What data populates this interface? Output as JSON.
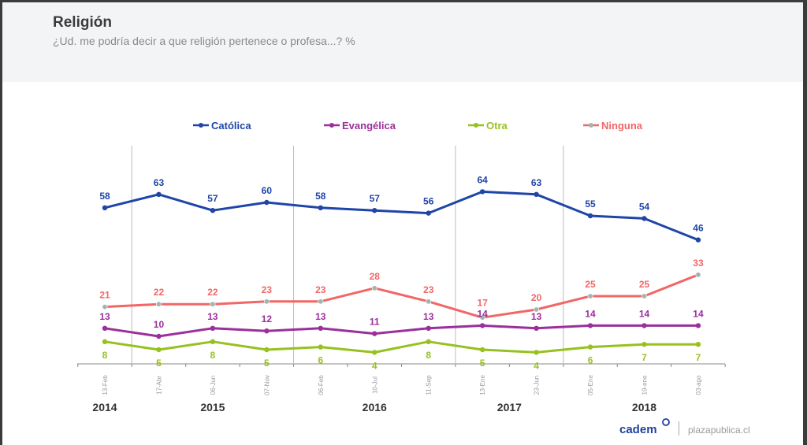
{
  "header": {
    "title": "Religión",
    "subtitle": "¿Ud. me podría decir a que religión pertenece o profesa...? %"
  },
  "footer": {
    "logo": "cadem",
    "site": "plazapublica.cl"
  },
  "chart_data": {
    "type": "line",
    "title": "Religión",
    "categories": [
      "13-Feb",
      "17-Abr",
      "06-Jun",
      "07-Nov",
      "06-Feb",
      "10-Jul",
      "11-Sep",
      "13-Ene",
      "23-Jun",
      "05-Ene",
      "19-ene",
      "03-ago"
    ],
    "years": [
      {
        "label": "2014",
        "center_index": 0
      },
      {
        "label": "2015",
        "center_index": 2
      },
      {
        "label": "2016",
        "center_index": 5
      },
      {
        "label": "2017",
        "center_index": 7.5
      },
      {
        "label": "2018",
        "center_index": 10
      }
    ],
    "year_separators_after_index": [
      0.5,
      3.5,
      6.5,
      8.5
    ],
    "ylim": [
      0,
      70
    ],
    "legend_position": "top",
    "series": [
      {
        "name": "Católica",
        "color": "#1f45a8",
        "marker": "#1f45a8",
        "label_pos": "above",
        "values": [
          58,
          63,
          57,
          60,
          58,
          57,
          56,
          64,
          63,
          55,
          54,
          46
        ]
      },
      {
        "name": "Evangélica",
        "color": "#9b2f9b",
        "marker": "#9b2f9b",
        "label_pos": "above",
        "values": [
          13,
          10,
          13,
          12,
          13,
          11,
          13,
          14,
          13,
          14,
          14,
          14
        ]
      },
      {
        "name": "Otra",
        "color": "#97c11f",
        "marker": "#97c11f",
        "label_pos": "below",
        "values": [
          8,
          5,
          8,
          5,
          6,
          4,
          8,
          5,
          4,
          6,
          7,
          7
        ]
      },
      {
        "name": "Ninguna",
        "color": "#f26666",
        "marker": "#a3b3b0",
        "label_pos": "above",
        "values": [
          21,
          22,
          22,
          23,
          23,
          28,
          23,
          17,
          20,
          25,
          25,
          33
        ]
      }
    ]
  }
}
